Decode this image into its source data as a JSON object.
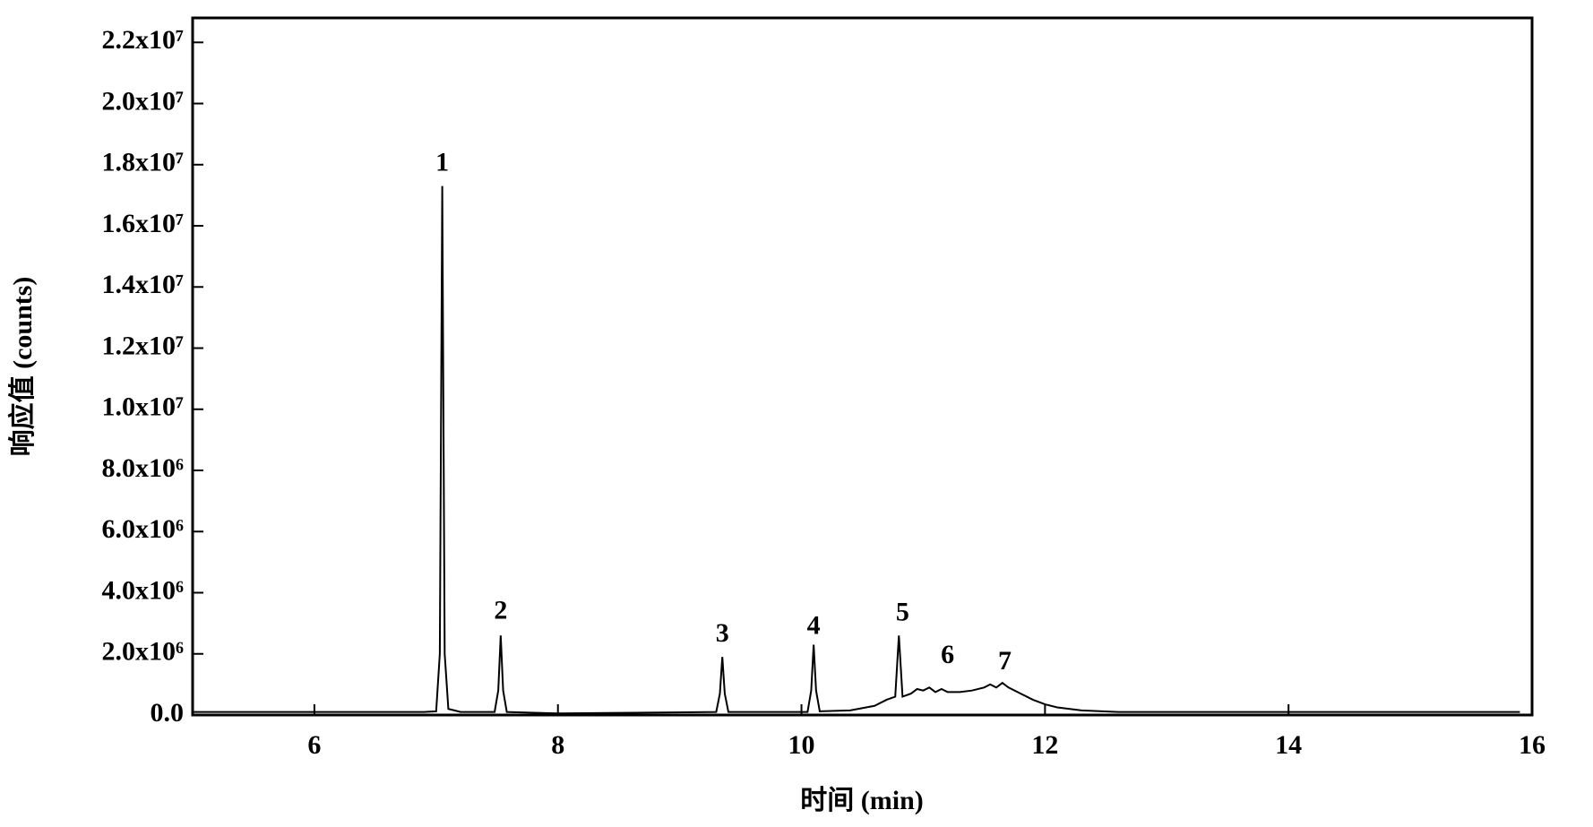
{
  "chart_data": {
    "type": "line",
    "x_label": "时间 (min)",
    "y_label": "响应值 (counts)",
    "color": "#000000",
    "x": [
      5.0,
      6.0,
      6.9,
      7.0,
      7.03,
      7.05,
      7.07,
      7.1,
      7.2,
      7.48,
      7.51,
      7.53,
      7.55,
      7.58,
      8.0,
      9.3,
      9.33,
      9.35,
      9.37,
      9.4,
      10.05,
      10.08,
      10.1,
      10.12,
      10.15,
      10.4,
      10.6,
      10.7,
      10.77,
      10.8,
      10.83,
      10.9,
      10.95,
      11.0,
      11.05,
      11.1,
      11.15,
      11.2,
      11.3,
      11.4,
      11.5,
      11.55,
      11.6,
      11.65,
      11.7,
      11.8,
      11.9,
      12.0,
      12.1,
      12.3,
      12.6,
      14.0,
      15.9
    ],
    "values": [
      100000,
      100000,
      100000,
      120000,
      2000000,
      17300000,
      2000000,
      200000,
      100000,
      100000,
      800000,
      2600000,
      800000,
      100000,
      50000,
      100000,
      700000,
      1900000,
      700000,
      100000,
      100000,
      800000,
      2300000,
      800000,
      120000,
      150000,
      300000,
      500000,
      600000,
      2600000,
      600000,
      700000,
      850000,
      800000,
      900000,
      750000,
      850000,
      750000,
      750000,
      800000,
      900000,
      1000000,
      900000,
      1050000,
      900000,
      700000,
      500000,
      350000,
      250000,
      150000,
      100000,
      100000,
      100000
    ],
    "xlim": [
      5,
      16
    ],
    "xticks": [
      6,
      8,
      10,
      12,
      14,
      16
    ],
    "ylim": [
      0,
      22800000
    ],
    "yticks": [
      {
        "value": 0,
        "label": "0.0"
      },
      {
        "value": 2000000,
        "label": "2.0x10⁶"
      },
      {
        "value": 4000000,
        "label": "4.0x10⁶"
      },
      {
        "value": 6000000,
        "label": "6.0x10⁶"
      },
      {
        "value": 8000000,
        "label": "8.0x10⁶"
      },
      {
        "value": 10000000,
        "label": "1.0x10⁷"
      },
      {
        "value": 12000000,
        "label": "1.2x10⁷"
      },
      {
        "value": 14000000,
        "label": "1.4x10⁷"
      },
      {
        "value": 16000000,
        "label": "1.6x10⁷"
      },
      {
        "value": 18000000,
        "label": "1.8x10⁷"
      },
      {
        "value": 20000000,
        "label": "2.0x10⁷"
      },
      {
        "value": 22000000,
        "label": "2.2x10⁷"
      }
    ],
    "annotations": [
      {
        "text": "1",
        "x": 7.05,
        "y": 18000000
      },
      {
        "text": "2",
        "x": 7.53,
        "y": 3350000
      },
      {
        "text": "3",
        "x": 9.35,
        "y": 2600000
      },
      {
        "text": "4",
        "x": 10.1,
        "y": 2850000
      },
      {
        "text": "5",
        "x": 10.83,
        "y": 3300000
      },
      {
        "text": "6",
        "x": 11.2,
        "y": 1900000
      },
      {
        "text": "7",
        "x": 11.67,
        "y": 1700000
      }
    ]
  }
}
